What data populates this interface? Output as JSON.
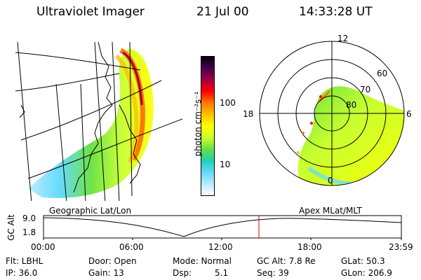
{
  "header": {
    "title": "Ultraviolet Imager",
    "date": "21 Jul 00",
    "time": "14:33:28 UT"
  },
  "colorbar": {
    "unit_label": "photon cm⁻²s⁻¹",
    "ticks": [
      "100",
      "10"
    ],
    "colors": [
      "#000000",
      "#4b0050",
      "#a00040",
      "#ff0000",
      "#ff7800",
      "#ffc000",
      "#ffff00",
      "#c8ff30",
      "#66e040",
      "#20d0b0",
      "#60d8ff",
      "#b8ecff",
      "#ffffff"
    ]
  },
  "left_panel": {
    "label": "Geographic Lat/Lon"
  },
  "polar_plot": {
    "label": "Apex MLat/MLT",
    "mlt_labels": [
      "12",
      "18",
      "6",
      "0"
    ],
    "lat_labels": [
      "60",
      "70",
      "80"
    ]
  },
  "altitude_plot": {
    "ylabel": "GC Alt",
    "yticks": [
      "9.0",
      "1.8"
    ],
    "xticks": [
      "00:00",
      "06:00",
      "12:00",
      "18:00",
      "23:59"
    ]
  },
  "info": {
    "flt": "Flt: LBHL",
    "ip": "IP: 36.0",
    "door": "Door: Open",
    "gain": "Gain: 13",
    "mode": "Mode: Normal",
    "dsp_label": "Dsp:",
    "dsp_value": "5.1",
    "gcalt": "GC Alt: 7.8 Re",
    "seq": "Seq: 39",
    "glat": "GLat: 50.3",
    "glon": "GLon: 206.9"
  }
}
